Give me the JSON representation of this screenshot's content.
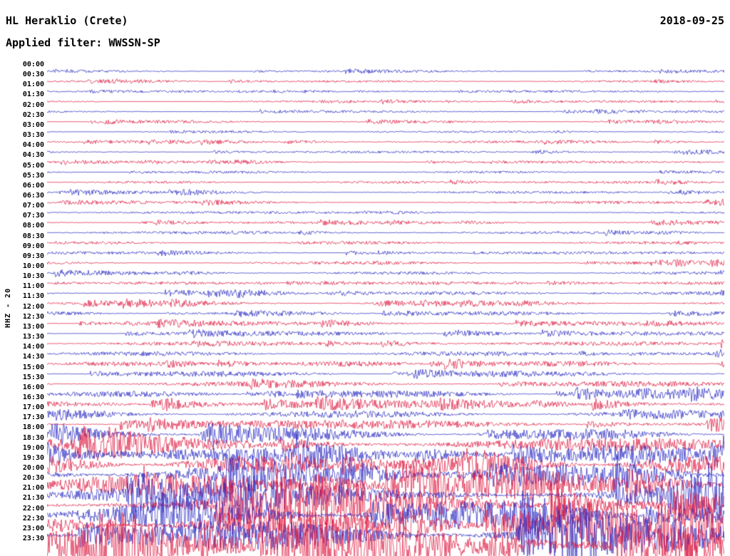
{
  "header": {
    "station_title": "HL Heraklio (Crete)",
    "date": "2018-09-25",
    "filter_label": "Applied filter: WWSSN-SP"
  },
  "axis": {
    "channel_label": "HHZ - 20"
  },
  "chart_data": {
    "type": "helicorder",
    "title": "HL Heraklio (Crete)",
    "date": "2018-09-25",
    "filter": "WWSSN-SP",
    "channel": "HHZ",
    "gain_label": "20",
    "row_duration_minutes": 30,
    "legend_position": "none",
    "grid": false,
    "colors": {
      "blue": "#2222c0",
      "red": "#dc143c"
    },
    "rows": [
      {
        "label": "00:00",
        "color": "blue",
        "amplitude": 1.5
      },
      {
        "label": "00:30",
        "color": "red",
        "amplitude": 1.5
      },
      {
        "label": "01:00",
        "color": "blue",
        "amplitude": 1.6
      },
      {
        "label": "01:30",
        "color": "red",
        "amplitude": 1.5
      },
      {
        "label": "02:00",
        "color": "blue",
        "amplitude": 1.5
      },
      {
        "label": "02:30",
        "color": "red",
        "amplitude": 1.6
      },
      {
        "label": "03:00",
        "color": "blue",
        "amplitude": 1.5
      },
      {
        "label": "03:30",
        "color": "red",
        "amplitude": 1.8
      },
      {
        "label": "04:00",
        "color": "blue",
        "amplitude": 1.6
      },
      {
        "label": "04:30",
        "color": "red",
        "amplitude": 1.6
      },
      {
        "label": "05:00",
        "color": "blue",
        "amplitude": 1.7
      },
      {
        "label": "05:30",
        "color": "red",
        "amplitude": 1.8
      },
      {
        "label": "06:00",
        "color": "blue",
        "amplitude": 1.8
      },
      {
        "label": "06:30",
        "color": "red",
        "amplitude": 2.0
      },
      {
        "label": "07:00",
        "color": "blue",
        "amplitude": 1.9
      },
      {
        "label": "07:30",
        "color": "red",
        "amplitude": 1.9
      },
      {
        "label": "08:00",
        "color": "blue",
        "amplitude": 2.0
      },
      {
        "label": "08:30",
        "color": "red",
        "amplitude": 2.0
      },
      {
        "label": "09:00",
        "color": "blue",
        "amplitude": 2.0
      },
      {
        "label": "09:30",
        "color": "red",
        "amplitude": 2.1
      },
      {
        "label": "10:00",
        "color": "blue",
        "amplitude": 2.2
      },
      {
        "label": "10:30",
        "color": "red",
        "amplitude": 2.2
      },
      {
        "label": "11:00",
        "color": "blue",
        "amplitude": 2.5
      },
      {
        "label": "11:30",
        "color": "red",
        "amplitude": 2.6
      },
      {
        "label": "12:00",
        "color": "blue",
        "amplitude": 2.6
      },
      {
        "label": "12:30",
        "color": "red",
        "amplitude": 2.8
      },
      {
        "label": "13:00",
        "color": "blue",
        "amplitude": 2.8
      },
      {
        "label": "13:30",
        "color": "red",
        "amplitude": 3.2
      },
      {
        "label": "14:00",
        "color": "blue",
        "amplitude": 3.4
      },
      {
        "label": "14:30",
        "color": "red",
        "amplitude": 3.6
      },
      {
        "label": "15:00",
        "color": "blue",
        "amplitude": 3.8
      },
      {
        "label": "15:30",
        "color": "red",
        "amplitude": 4.0
      },
      {
        "label": "16:00",
        "color": "blue",
        "amplitude": 4.5
      },
      {
        "label": "16:30",
        "color": "red",
        "amplitude": 4.8
      },
      {
        "label": "17:00",
        "color": "blue",
        "amplitude": 5.2
      },
      {
        "label": "17:30",
        "color": "red",
        "amplitude": 6.5
      },
      {
        "label": "18:00",
        "color": "blue",
        "amplitude": 8
      },
      {
        "label": "18:30",
        "color": "red",
        "amplitude": 9.5
      },
      {
        "label": "19:00",
        "color": "blue",
        "amplitude": 11
      },
      {
        "label": "19:30",
        "color": "red",
        "amplitude": 13
      },
      {
        "label": "20:00",
        "color": "blue",
        "amplitude": 14
      },
      {
        "label": "20:30",
        "color": "red",
        "amplitude": 16
      },
      {
        "label": "21:00",
        "color": "blue",
        "amplitude": 17
      },
      {
        "label": "21:30",
        "color": "red",
        "amplitude": 18
      },
      {
        "label": "22:00",
        "color": "blue",
        "amplitude": 19
      },
      {
        "label": "22:30",
        "color": "red",
        "amplitude": 20
      },
      {
        "label": "23:00",
        "color": "blue",
        "amplitude": 21
      },
      {
        "label": "23:30",
        "color": "red",
        "amplitude": 22
      }
    ]
  }
}
